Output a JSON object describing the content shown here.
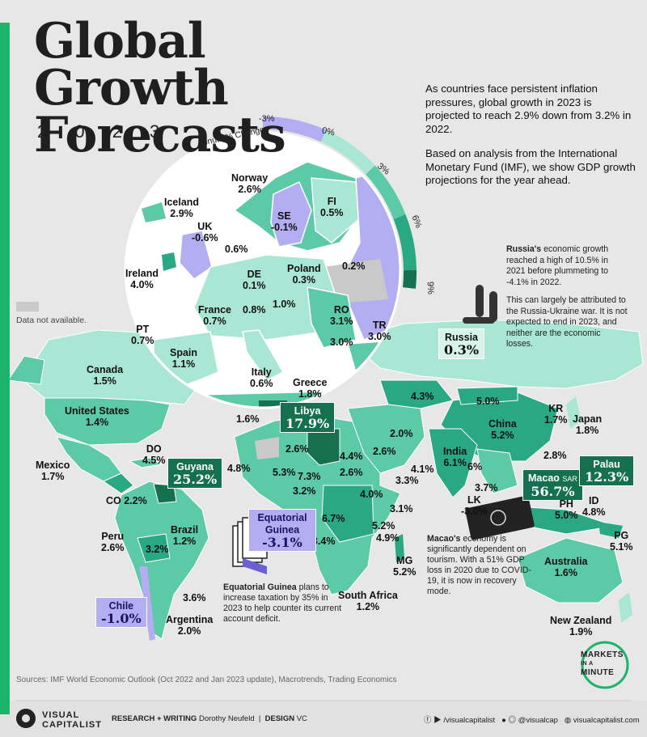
{
  "title": "Global Growth Forecasts",
  "year": "2 0 2 3",
  "intro": {
    "p1": "As countries face persistent inflation pressures, global growth in 2023 is projected to reach 2.9% down from 3.2% in 2022.",
    "p2": "Based on analysis from the International Monetary Fund (IMF), we show GDP growth projections for the year ahead."
  },
  "scale": {
    "label": "Annual % Change",
    "ticks": [
      "-3%",
      "0%",
      "3%",
      "6%",
      "9%"
    ]
  },
  "legend": {
    "not_available": "Data not available."
  },
  "russia_note": {
    "lead": "Russia's",
    "p1": " economic growth reached a high of 10.5% in 2021 before plummeting to -4.1% in 2022.",
    "p2": "This can largely be attributed to the Russia-Ukraine war. It is not expected to end in 2023, and neither are the economic losses."
  },
  "eg_note": {
    "lead": "Equatorial Guinea",
    "text": " plans to increase taxation by 35% in 2023 to help counter its current account deficit."
  },
  "macao_note": {
    "lead": "Macao's",
    "text": " economy is significantly dependent on tourism. With a 51% GDP loss in 2020 due to COVID-19, it is now in recovery mode."
  },
  "countries": {
    "norway": {
      "name": "Norway",
      "value": "2.6%"
    },
    "iceland": {
      "name": "Iceland",
      "value": "2.9%"
    },
    "se": {
      "name": "SE",
      "value": "-0.1%"
    },
    "fi": {
      "name": "FI",
      "value": "0.5%"
    },
    "uk": {
      "name": "UK",
      "value": "-0.6%"
    },
    "nl": {
      "value": "0.6%"
    },
    "ireland": {
      "name": "Ireland",
      "value": "4.0%"
    },
    "de": {
      "name": "DE",
      "value": "0.1%"
    },
    "poland": {
      "name": "Poland",
      "value": "0.3%"
    },
    "baltic": {
      "value": "0.2%"
    },
    "france": {
      "name": "France",
      "value": "0.7%"
    },
    "at": {
      "value": "0.8%"
    },
    "hu": {
      "value": "1.0%"
    },
    "ro": {
      "name": "RO",
      "value": "3.1%"
    },
    "bg": {
      "value": "3.0%"
    },
    "pt": {
      "name": "PT",
      "value": "0.7%"
    },
    "tr": {
      "name": "TR",
      "value": "3.0%"
    },
    "spain": {
      "name": "Spain",
      "value": "1.1%"
    },
    "italy": {
      "name": "Italy",
      "value": "0.6%"
    },
    "greece": {
      "name": "Greece",
      "value": "1.8%"
    },
    "russia": {
      "name": "Russia",
      "value": "0.3%"
    },
    "canada": {
      "name": "Canada",
      "value": "1.5%"
    },
    "us": {
      "name": "United States",
      "value": "1.4%"
    },
    "mexico": {
      "name": "Mexico",
      "value": "1.7%"
    },
    "do": {
      "name": "DO",
      "value": "4.5%"
    },
    "guyana": {
      "name": "Guyana",
      "value": "25.2%"
    },
    "co": {
      "name": "CO",
      "value": "2.2%"
    },
    "peru": {
      "name": "Peru",
      "value": "2.6%"
    },
    "brazil": {
      "name": "Brazil",
      "value": "1.2%"
    },
    "bolivia": {
      "value": "3.2%"
    },
    "uruguay": {
      "value": "3.6%"
    },
    "chile": {
      "name": "Chile",
      "value": "-1.0%"
    },
    "argentina": {
      "name": "Argentina",
      "value": "2.0%"
    },
    "morocco": {
      "value": "1.6%"
    },
    "libya": {
      "name": "Libya",
      "value": "17.9%"
    },
    "w_africa": {
      "value": "4.8%"
    },
    "mali": {
      "value": "2.6%"
    },
    "niger": {
      "value": "5.3%"
    },
    "nigeria": {
      "value": "7.3%"
    },
    "cameroon": {
      "value": "3.2%"
    },
    "egypt": {
      "value": "4.4%"
    },
    "sudan": {
      "value": "2.6%"
    },
    "ethiopia": {
      "value": "4.0%"
    },
    "somalia": {
      "value": "3.1%"
    },
    "drc": {
      "value": "6.7%"
    },
    "tz": {
      "value": "5.2%"
    },
    "mz": {
      "value": "4.9%"
    },
    "angola": {
      "value": "3.4%"
    },
    "eq_guinea": {
      "name": "Equatorial Guinea",
      "value": "-3.1%"
    },
    "mg": {
      "name": "MG",
      "value": "5.2%"
    },
    "south_africa": {
      "name": "South Africa",
      "value": "1.2%"
    },
    "saudi": {
      "value": "2.6%"
    },
    "iran": {
      "value": "2.0%"
    },
    "kz": {
      "value": "4.3%"
    },
    "oman": {
      "value": "4.1%"
    },
    "yemen": {
      "value": "3.3%"
    },
    "mongolia": {
      "value": "5.0%"
    },
    "china": {
      "name": "China",
      "value": "5.2%"
    },
    "kr": {
      "name": "KR",
      "value": "1.7%"
    },
    "japan": {
      "name": "Japan",
      "value": "1.8%"
    },
    "india": {
      "name": "India",
      "value": "6.1%"
    },
    "bd": {
      "value": "6%"
    },
    "vn": {
      "value": "2.8%"
    },
    "th": {
      "value": "3.7%"
    },
    "lk": {
      "name": "LK",
      "value": "-3.0%"
    },
    "macao": {
      "name": "Macao",
      "suffix": "SAR",
      "value": "56.7%"
    },
    "palau": {
      "name": "Palau",
      "value": "12.3%"
    },
    "ph": {
      "name": "PH",
      "value": "5.0%"
    },
    "id": {
      "name": "ID",
      "value": "4.8%"
    },
    "pg": {
      "name": "PG",
      "value": "5.1%"
    },
    "australia": {
      "name": "Australia",
      "value": "1.6%"
    },
    "nz": {
      "name": "New Zealand",
      "value": "1.9%"
    }
  },
  "sources": "Sources: IMF World Economic Outlook (Oct 2022 and Jan 2023 update), Macrotrends, Trading Economics",
  "footer": {
    "logo_top": "VISUAL",
    "logo_bottom": "CAPITALIST",
    "research_label": "RESEARCH + WRITING",
    "research_name": "Dorothy Neufeld",
    "design_label": "DESIGN",
    "design_name": "VC",
    "handle1": "/visualcapitalist",
    "handle2": "@visualcap",
    "site": "visualcapitalist.com"
  },
  "mim": {
    "l1": "MARKETS",
    "l2": "IN A",
    "l3": "MINUTE"
  },
  "colors": {
    "very_light": "#d4f2e8",
    "light": "#a9e6d3",
    "mid": "#5cc9a7",
    "strong": "#2aa884",
    "dark": "#15704f",
    "negative": "#b3adf1",
    "na": "#c9c9c9",
    "accent": "#1db36b"
  }
}
